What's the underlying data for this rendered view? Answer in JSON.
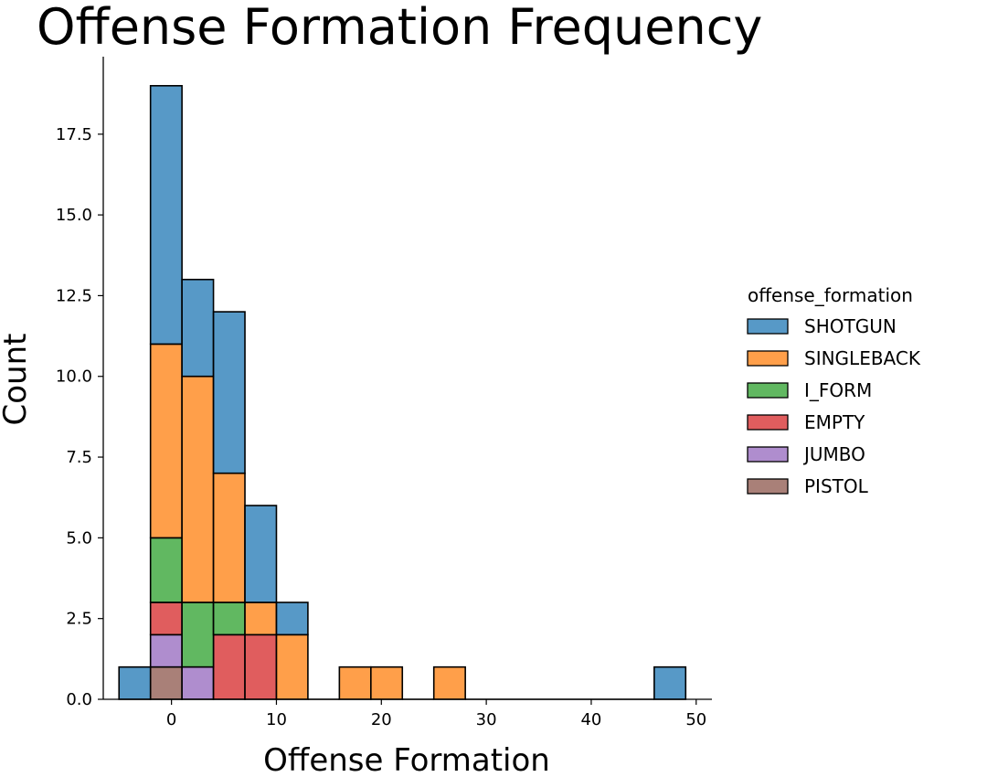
{
  "chart_data": {
    "type": "bar",
    "title": "Offense Formation Frequency",
    "xlabel": "Offense Formation",
    "ylabel": "Count",
    "xlim": [
      -6.5,
      51.5
    ],
    "ylim": [
      0,
      19.9
    ],
    "x_ticks": [
      0,
      10,
      20,
      30,
      40,
      50
    ],
    "y_ticks": [
      0.0,
      2.5,
      5.0,
      7.5,
      10.0,
      12.5,
      15.0,
      17.5
    ],
    "y_tick_labels": [
      "0.0",
      "2.5",
      "5.0",
      "7.5",
      "10.0",
      "12.5",
      "15.0",
      "17.5"
    ],
    "x_tick_labels": [
      "0",
      "10",
      "20",
      "30",
      "40",
      "50"
    ],
    "stacked": true,
    "legend_title": "offense_formation",
    "legend_position": "right",
    "grid": false,
    "bin_edges": [
      -5,
      -2,
      1,
      4,
      7,
      10,
      13,
      16,
      19,
      22,
      25,
      28,
      31,
      34,
      37,
      40,
      43,
      46,
      49
    ],
    "series": [
      {
        "name": "PISTOL",
        "color": "#8c564b",
        "values": [
          0,
          1,
          0,
          0,
          0,
          0,
          0,
          0,
          0,
          0,
          0,
          0,
          0,
          0,
          0,
          0,
          0,
          0
        ]
      },
      {
        "name": "JUMBO",
        "color": "#9467bd",
        "values": [
          0,
          1,
          1,
          0,
          0,
          0,
          0,
          0,
          0,
          0,
          0,
          0,
          0,
          0,
          0,
          0,
          0,
          0
        ]
      },
      {
        "name": "EMPTY",
        "color": "#d62728",
        "values": [
          0,
          1,
          0,
          2,
          2,
          0,
          0,
          0,
          0,
          0,
          0,
          0,
          0,
          0,
          0,
          0,
          0,
          0
        ]
      },
      {
        "name": "I_FORM",
        "color": "#2ca02c",
        "values": [
          0,
          2,
          2,
          1,
          0,
          0,
          0,
          0,
          0,
          0,
          0,
          0,
          0,
          0,
          0,
          0,
          0,
          0
        ]
      },
      {
        "name": "SINGLEBACK",
        "color": "#ff7f0e",
        "values": [
          0,
          6,
          7,
          4,
          1,
          2,
          0,
          1,
          1,
          0,
          1,
          0,
          0,
          0,
          0,
          0,
          0,
          0
        ]
      },
      {
        "name": "SHOTGUN",
        "color": "#1f77b4",
        "values": [
          1,
          8,
          3,
          5,
          3,
          1,
          0,
          0,
          0,
          0,
          0,
          0,
          0,
          0,
          0,
          0,
          0,
          1
        ]
      }
    ],
    "legend_order": [
      "SHOTGUN",
      "SINGLEBACK",
      "I_FORM",
      "EMPTY",
      "JUMBO",
      "PISTOL"
    ]
  }
}
